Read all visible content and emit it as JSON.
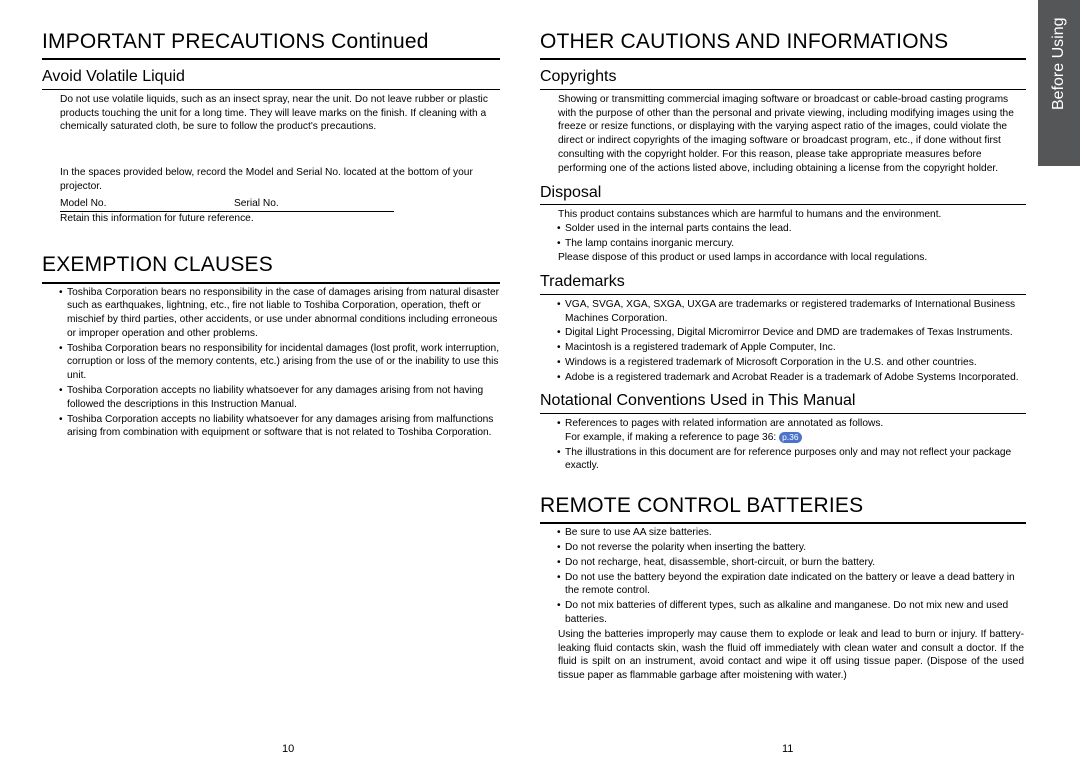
{
  "sideTab": "Before Using",
  "left": {
    "heading1": "IMPORTANT PRECAUTIONS  Continued",
    "sub1": "Avoid Volatile Liquid",
    "avoidText": "Do not use volatile liquids, such as an insect spray, near the unit.  Do not leave rubber or plastic products touching the unit for a long time.  They will leave marks on the finish. If cleaning with a chemically saturated cloth, be sure to follow the product's precautions.",
    "recordText": "In the spaces provided below, record the Model and Serial No. located at the bottom of your projector.",
    "modelLabel": "Model No.",
    "serialLabel": "Serial No.",
    "retainText": "Retain this information for future reference.",
    "heading2": "EXEMPTION CLAUSES",
    "exemptionBullets": [
      "Toshiba Corporation bears no responsibility in the case of damages arising from natural disaster such as earthquakes, lightning, etc., fire not liable to Toshiba Corporation, operation, theft or mischief by third parties, other accidents, or use under abnormal conditions including erroneous or improper operation and other problems.",
      "Toshiba Corporation bears no responsibility for incidental damages (lost profit, work interruption, corruption or loss of the memory contents, etc.) arising from the use of or the inability to use this unit.",
      "Toshiba Corporation accepts no liability whatsoever for any damages arising from not having followed the descriptions in this Instruction Manual.",
      "Toshiba Corporation accepts no liability whatsoever for any damages arising from malfunctions arising from combination with equipment or software that is not related to Toshiba Corporation."
    ],
    "pageNum": "10"
  },
  "right": {
    "heading1": "OTHER CAUTIONS AND INFORMATIONS",
    "subCopy": "Copyrights",
    "copyText": "Showing or transmitting commercial imaging software or broadcast or cable-broad casting programs with the purpose of other than the personal and private viewing, including modifying images using the freeze or resize functions, or displaying with the varying aspect ratio of the images, could violate the direct or indirect copyrights of the imaging software or broadcast program, etc., if done without first consulting with the copyright holder. For this reason, please take appropriate measures before performing one of the actions listed above, including obtaining a license from the copyright holder.",
    "subDisp": "Disposal",
    "dispText": "This product contains substances which are harmful to humans and the environment.",
    "dispBullets": [
      "Solder used in the internal parts contains the lead.",
      "The lamp contains inorganic mercury."
    ],
    "dispFoot": "Please dispose of this product or used lamps in accordance with local regulations.",
    "subTrade": "Trademarks",
    "tradeBullets": [
      "VGA, SVGA, XGA, SXGA, UXGA are trademarks or registered trademarks of International Business Machines Corporation.",
      "Digital Light Processing, Digital Micromirror Device and DMD are trademakes of Texas Instruments.",
      "Macintosh is a registered trademark of Apple Computer, Inc.",
      "Windows is a registered trademark of Microsoft Corporation in the U.S. and other countries.",
      "Adobe is a registered trademark and Acrobat Reader is a trademark of Adobe Systems Incorporated."
    ],
    "subNot": "Notational Conventions Used in This Manual",
    "notBul1a": "References to pages with related information are annotated as follows.",
    "notBul1b": "For example, if making a reference to page 36:",
    "notBadge": "p.36",
    "notBul2": "The illustrations in this document are for reference purposes only and may not reflect your package exactly.",
    "heading2": "REMOTE CONTROL BATTERIES",
    "remoteBullets": [
      "Be sure to use AA size batteries.",
      "Do not reverse the polarity when inserting the battery.",
      "Do not recharge, heat, disassemble, short-circuit, or burn the battery.",
      "Do not use the battery beyond the expiration date indicated on the battery or leave a dead battery in the remote control.",
      "Do not mix batteries of different types, such as alkaline and manganese. Do not mix new and used batteries."
    ],
    "remoteFoot": "Using the batteries improperly may cause them to explode or leak and lead to burn or injury. If battery-leaking fluid contacts skin, wash the fluid off immediately with clean water and consult a doctor. If the fluid is spilt on an instrument, avoid contact and wipe it off using tissue paper. (Dispose of the used tissue paper as flammable garbage after moistening with water.)",
    "pageNum": "11"
  },
  "colors": {
    "sideTabBg": "#555657",
    "badgeBg": "#4a73c9",
    "text": "#000000",
    "bg": "#ffffff"
  }
}
